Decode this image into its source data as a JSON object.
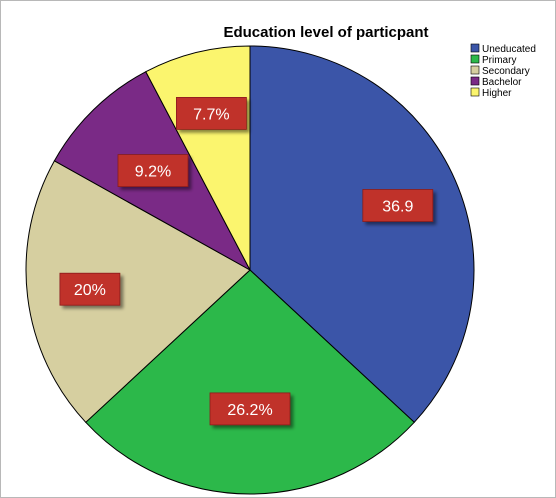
{
  "chart_data": {
    "type": "pie",
    "title": "Education level of particpant",
    "categories": [
      "Uneducated",
      "Primary",
      "Secondary",
      "Bachelor",
      "Higher"
    ],
    "values": [
      36.9,
      26.2,
      20,
      9.2,
      7.7
    ],
    "data_labels": [
      "36.9",
      "26.2%",
      "20%",
      "9.2%",
      "7.7%"
    ],
    "colors": [
      "#3b55a8",
      "#2cb84a",
      "#d6cfa0",
      "#7a2a86",
      "#fbf56e"
    ],
    "legend": {
      "placement": "top-right",
      "entries": [
        "Uneducated",
        "Primary",
        "Secondary",
        "Bachelor",
        "Higher"
      ]
    },
    "label_box_color": "#c0302b"
  }
}
